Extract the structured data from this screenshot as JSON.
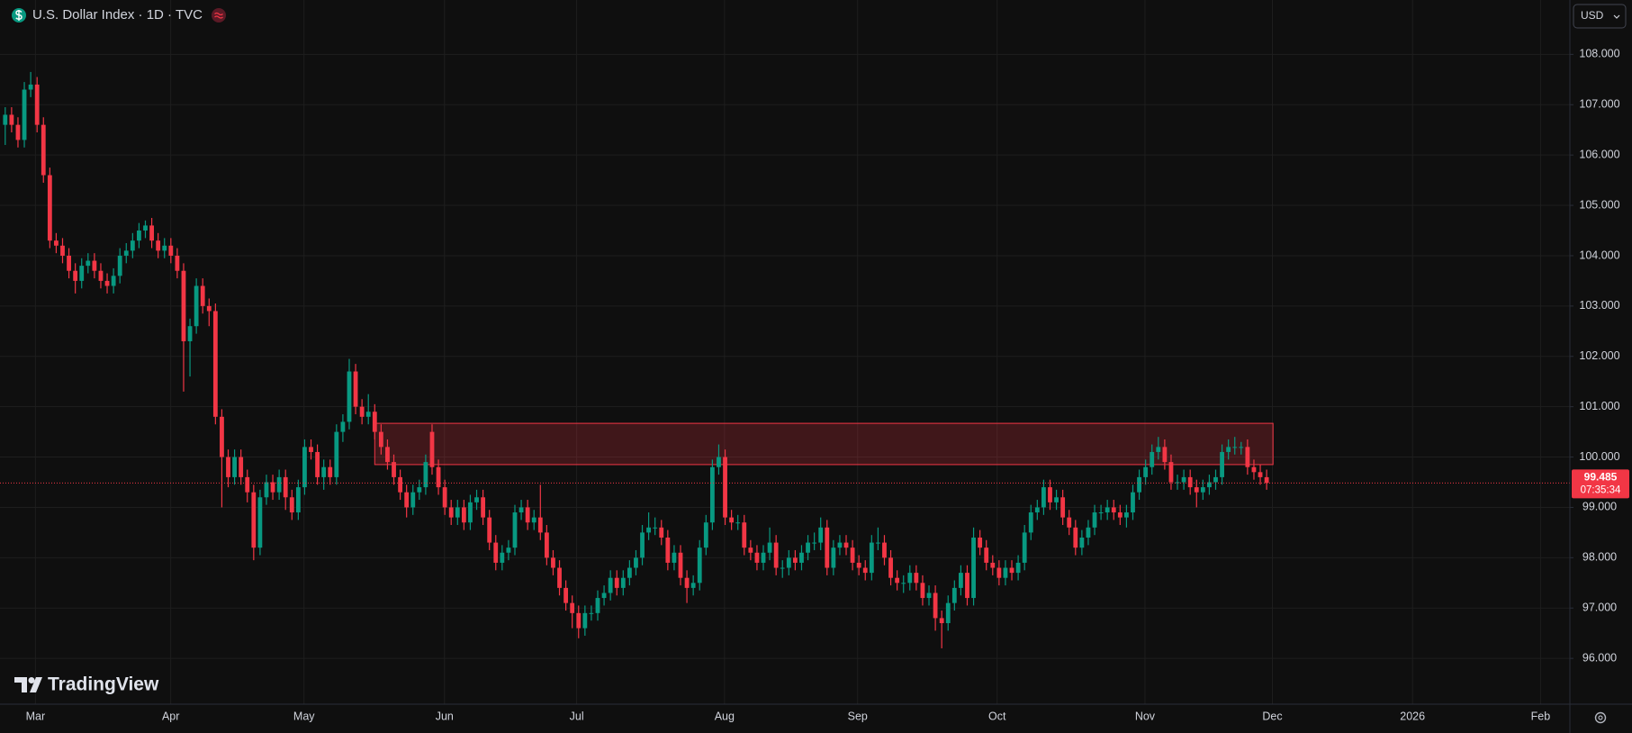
{
  "header": {
    "title": "U.S. Dollar Index · 1D · TVC",
    "currency": "USD"
  },
  "watermark": "TradingView",
  "chart_data": {
    "type": "candlestick",
    "up_color": "#089981",
    "down_color": "#f23645",
    "open": [
      106.6,
      106.8,
      106.6,
      106.3,
      107.3,
      107.4,
      106.6,
      105.6,
      104.3,
      104.2,
      104.0,
      103.7,
      103.5,
      103.8,
      103.9,
      103.7,
      103.5,
      103.4,
      103.6,
      104.0,
      104.1,
      104.3,
      104.5,
      104.6,
      104.3,
      104.1,
      104.2,
      104.0,
      103.7,
      102.3,
      102.6,
      103.4,
      103.0,
      102.9,
      100.8,
      100.0,
      99.6,
      100.0,
      99.6,
      99.3,
      98.2,
      99.2,
      99.5,
      99.3,
      99.6,
      99.2,
      98.9,
      99.4,
      100.2,
      100.1,
      99.6,
      99.8,
      99.6,
      100.5,
      100.7,
      101.7,
      101.0,
      100.8,
      100.9,
      100.5,
      100.2,
      99.9,
      99.6,
      99.3,
      99.0,
      99.3,
      99.4,
      100.5,
      99.8,
      99.4,
      99.0,
      98.8,
      99.0,
      98.7,
      99.1,
      99.2,
      98.8,
      98.3,
      97.9,
      98.1,
      98.2,
      98.9,
      99.0,
      98.7,
      98.8,
      98.5,
      98.0,
      97.8,
      97.4,
      97.1,
      96.9,
      96.6,
      96.9,
      96.9,
      97.2,
      97.3,
      97.6,
      97.4,
      97.6,
      97.8,
      98.0,
      98.5,
      98.6,
      98.6,
      98.4,
      97.9,
      98.1,
      97.6,
      97.4,
      97.5,
      98.2,
      98.7,
      99.8,
      100.0,
      98.8,
      98.7,
      98.7,
      98.2,
      98.1,
      97.9,
      98.1,
      98.3,
      97.8,
      97.8,
      98.0,
      97.9,
      98.1,
      98.3,
      98.3,
      98.6,
      97.8,
      98.2,
      98.3,
      98.2,
      97.9,
      97.8,
      97.7,
      98.3,
      98.3,
      98.0,
      97.6,
      97.5,
      97.5,
      97.7,
      97.5,
      97.2,
      97.3,
      96.8,
      96.7,
      97.1,
      97.4,
      97.7,
      97.2,
      98.4,
      98.2,
      97.9,
      97.8,
      97.6,
      97.8,
      97.7,
      97.9,
      98.5,
      98.9,
      99.0,
      99.4,
      99.1,
      99.2,
      98.8,
      98.6,
      98.2,
      98.4,
      98.6,
      98.9,
      98.9,
      99.0,
      98.9,
      98.8,
      98.9,
      99.3,
      99.6,
      99.8,
      100.1,
      100.2,
      99.9,
      99.5,
      99.5,
      99.6,
      99.4,
      99.3,
      99.4,
      99.5,
      99.6,
      100.1,
      100.2,
      100.2,
      100.2,
      99.8,
      99.7,
      99.6
    ],
    "high": [
      106.95,
      106.95,
      106.75,
      107.45,
      107.65,
      107.55,
      106.75,
      105.75,
      104.45,
      104.35,
      104.15,
      103.85,
      103.95,
      104.05,
      104.05,
      103.85,
      103.65,
      103.75,
      104.15,
      104.25,
      104.45,
      104.65,
      104.7,
      104.75,
      104.45,
      104.35,
      104.35,
      104.15,
      103.85,
      102.75,
      103.55,
      103.55,
      103.15,
      103.05,
      100.95,
      100.15,
      100.15,
      100.15,
      99.75,
      99.45,
      99.35,
      99.65,
      99.65,
      99.75,
      99.75,
      99.35,
      99.55,
      100.35,
      100.35,
      100.25,
      99.95,
      99.95,
      100.65,
      100.85,
      101.95,
      101.85,
      101.15,
      101.25,
      101.05,
      100.65,
      100.35,
      100.05,
      99.75,
      99.45,
      99.45,
      99.55,
      100.05,
      100.65,
      99.95,
      99.55,
      99.15,
      99.15,
      99.15,
      99.25,
      99.35,
      99.35,
      98.95,
      98.45,
      98.25,
      98.35,
      99.05,
      99.15,
      99.15,
      98.95,
      99.45,
      98.65,
      98.15,
      97.95,
      97.55,
      97.25,
      97.05,
      97.05,
      97.05,
      97.35,
      97.45,
      97.75,
      97.75,
      97.75,
      97.95,
      98.15,
      98.65,
      98.9,
      98.8,
      98.75,
      98.55,
      98.25,
      98.25,
      97.75,
      97.65,
      98.35,
      98.85,
      99.95,
      100.25,
      100.15,
      98.95,
      98.85,
      98.85,
      98.35,
      98.25,
      98.25,
      98.6,
      98.45,
      97.95,
      98.15,
      98.15,
      98.25,
      98.45,
      98.5,
      98.8,
      98.75,
      98.35,
      98.45,
      98.45,
      98.35,
      98.05,
      97.95,
      98.45,
      98.6,
      98.45,
      98.15,
      97.75,
      97.65,
      97.85,
      97.85,
      97.65,
      97.45,
      97.45,
      96.95,
      97.25,
      97.55,
      97.85,
      97.85,
      98.6,
      98.55,
      98.35,
      98.05,
      97.95,
      97.95,
      97.95,
      98.05,
      98.65,
      99.05,
      99.15,
      99.55,
      99.55,
      99.35,
      99.35,
      98.95,
      98.75,
      98.55,
      98.75,
      99.05,
      99.05,
      99.15,
      99.15,
      99.05,
      99.05,
      99.45,
      99.75,
      99.95,
      100.25,
      100.4,
      100.35,
      100.05,
      99.65,
      99.75,
      99.75,
      99.55,
      99.55,
      99.65,
      99.75,
      100.25,
      100.35,
      100.4,
      100.3,
      100.35,
      99.95,
      99.85,
      99.75
    ],
    "low": [
      106.2,
      106.45,
      106.15,
      106.15,
      107.15,
      106.45,
      105.45,
      104.15,
      104.05,
      103.85,
      103.55,
      103.25,
      103.35,
      103.65,
      103.55,
      103.35,
      103.25,
      103.25,
      103.45,
      103.85,
      103.95,
      104.15,
      104.35,
      104.15,
      103.95,
      103.95,
      103.85,
      103.55,
      101.3,
      101.6,
      102.45,
      102.85,
      102.6,
      100.65,
      99.0,
      99.4,
      99.45,
      99.45,
      99.1,
      97.95,
      98.05,
      99.05,
      99.15,
      99.15,
      98.95,
      98.75,
      98.75,
      99.25,
      99.95,
      99.45,
      99.35,
      99.45,
      99.45,
      100.3,
      100.55,
      100.85,
      100.65,
      100.65,
      100.35,
      100.05,
      99.75,
      99.45,
      99.15,
      98.8,
      98.85,
      99.15,
      99.25,
      99.65,
      99.25,
      98.85,
      98.65,
      98.65,
      98.55,
      98.55,
      98.95,
      98.65,
      98.15,
      97.75,
      97.75,
      97.95,
      98.05,
      98.75,
      98.55,
      98.55,
      98.35,
      97.85,
      97.65,
      97.25,
      96.95,
      96.6,
      96.4,
      96.45,
      96.75,
      96.75,
      97.05,
      97.15,
      97.25,
      97.25,
      97.45,
      97.65,
      97.85,
      98.35,
      98.45,
      98.25,
      97.75,
      97.75,
      97.45,
      97.1,
      97.25,
      97.35,
      98.05,
      98.55,
      99.65,
      98.65,
      98.55,
      98.55,
      98.05,
      97.95,
      97.75,
      97.75,
      97.95,
      97.65,
      97.6,
      97.65,
      97.75,
      97.75,
      97.95,
      98.15,
      98.15,
      97.65,
      97.65,
      98.05,
      98.05,
      97.75,
      97.65,
      97.55,
      97.55,
      98.15,
      97.85,
      97.45,
      97.35,
      97.3,
      97.35,
      97.35,
      97.05,
      97.05,
      96.55,
      96.2,
      96.55,
      96.95,
      97.25,
      97.05,
      97.05,
      98.05,
      97.75,
      97.65,
      97.45,
      97.45,
      97.55,
      97.55,
      97.75,
      98.35,
      98.75,
      98.85,
      98.95,
      98.95,
      98.65,
      98.45,
      98.05,
      98.05,
      98.25,
      98.45,
      98.75,
      98.75,
      98.75,
      98.65,
      98.6,
      98.75,
      99.15,
      99.45,
      99.65,
      99.95,
      99.75,
      99.35,
      99.35,
      99.35,
      99.25,
      99.0,
      99.15,
      99.25,
      99.35,
      99.45,
      99.95,
      100.05,
      100.05,
      99.65,
      99.55,
      99.45,
      99.35
    ],
    "close": [
      106.8,
      106.6,
      106.3,
      107.3,
      107.4,
      106.6,
      105.6,
      104.3,
      104.2,
      104.0,
      103.7,
      103.5,
      103.8,
      103.9,
      103.7,
      103.5,
      103.4,
      103.6,
      104.0,
      104.1,
      104.3,
      104.5,
      104.6,
      104.3,
      104.1,
      104.2,
      104.0,
      103.7,
      102.3,
      102.6,
      103.4,
      103.0,
      102.9,
      100.8,
      100.0,
      99.6,
      100.0,
      99.6,
      99.3,
      98.2,
      99.2,
      99.5,
      99.3,
      99.6,
      99.2,
      98.9,
      99.4,
      100.2,
      100.1,
      99.6,
      99.8,
      99.6,
      100.5,
      100.7,
      101.7,
      101.0,
      100.8,
      100.9,
      100.5,
      100.2,
      99.9,
      99.6,
      99.3,
      99.0,
      99.3,
      99.4,
      99.9,
      99.8,
      99.4,
      99.0,
      98.8,
      99.0,
      98.7,
      99.1,
      99.2,
      98.8,
      98.3,
      97.9,
      98.1,
      98.2,
      98.9,
      99.0,
      98.7,
      98.8,
      98.5,
      98.0,
      97.8,
      97.4,
      97.1,
      96.9,
      96.6,
      96.9,
      96.9,
      97.2,
      97.3,
      97.6,
      97.4,
      97.6,
      97.8,
      98.0,
      98.5,
      98.6,
      98.6,
      98.4,
      97.9,
      98.1,
      97.6,
      97.4,
      97.5,
      98.2,
      98.7,
      99.8,
      100.0,
      98.8,
      98.7,
      98.7,
      98.2,
      98.1,
      97.9,
      98.1,
      98.3,
      97.8,
      97.8,
      98.0,
      97.9,
      98.1,
      98.3,
      98.3,
      98.6,
      97.8,
      98.2,
      98.3,
      98.2,
      97.9,
      97.8,
      97.7,
      98.3,
      98.3,
      98.0,
      97.6,
      97.5,
      97.5,
      97.7,
      97.5,
      97.2,
      97.3,
      96.8,
      96.7,
      97.1,
      97.4,
      97.7,
      97.2,
      98.4,
      98.2,
      97.9,
      97.8,
      97.6,
      97.8,
      97.7,
      97.9,
      98.5,
      98.9,
      99.0,
      99.4,
      99.1,
      99.2,
      98.8,
      98.6,
      98.2,
      98.4,
      98.6,
      98.9,
      98.9,
      99.0,
      98.9,
      98.8,
      98.9,
      99.3,
      99.6,
      99.8,
      100.1,
      100.2,
      99.9,
      99.5,
      99.5,
      99.6,
      99.4,
      99.3,
      99.4,
      99.5,
      99.6,
      100.1,
      100.2,
      100.2,
      100.2,
      99.8,
      99.7,
      99.6,
      99.485
    ],
    "ylim": [
      95.09,
      109.08
    ],
    "yticks": [
      {
        "value": 96,
        "label": "96.000"
      },
      {
        "value": 97,
        "label": "97.000"
      },
      {
        "value": 98,
        "label": "98.000"
      },
      {
        "value": 99,
        "label": "99.000"
      },
      {
        "value": 100,
        "label": "100.000"
      },
      {
        "value": 101,
        "label": "101.000"
      },
      {
        "value": 102,
        "label": "102.000"
      },
      {
        "value": 103,
        "label": "103.000"
      },
      {
        "value": 104,
        "label": "104.000"
      },
      {
        "value": 105,
        "label": "105.000"
      },
      {
        "value": 106,
        "label": "106.000"
      },
      {
        "value": 107,
        "label": "107.000"
      },
      {
        "value": 108,
        "label": "108.000"
      }
    ],
    "xlim": [
      -0.82,
      245.6
    ],
    "xticks": [
      {
        "value": 4.74,
        "label": "Mar"
      },
      {
        "value": 25.98,
        "label": "Apr"
      },
      {
        "value": 46.9,
        "label": "May"
      },
      {
        "value": 68.95,
        "label": "Jun"
      },
      {
        "value": 89.7,
        "label": "Jul"
      },
      {
        "value": 112.9,
        "label": "Aug"
      },
      {
        "value": 133.8,
        "label": "Sep"
      },
      {
        "value": 155.7,
        "label": "Oct"
      },
      {
        "value": 178.9,
        "label": "Nov"
      },
      {
        "value": 198.9,
        "label": "Dec"
      },
      {
        "value": 220.9,
        "label": "2026"
      },
      {
        "value": 241.0,
        "label": "Feb"
      }
    ],
    "grid": true,
    "last_price": {
      "value": 99.485,
      "label": "99.485"
    },
    "countdown": "07:35:34",
    "zone": {
      "low": 99.85,
      "high": 100.67,
      "start": 58.0,
      "end": 199.0,
      "color": "#f23645"
    }
  }
}
